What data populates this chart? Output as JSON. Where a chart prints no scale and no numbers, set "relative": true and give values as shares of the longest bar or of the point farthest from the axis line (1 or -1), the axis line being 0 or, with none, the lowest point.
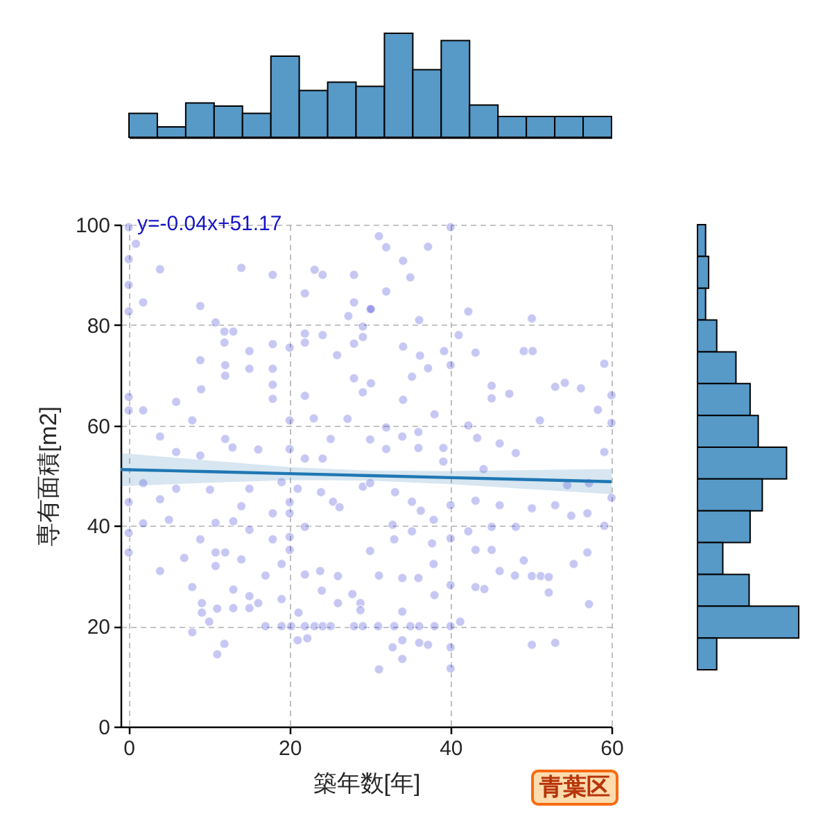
{
  "chart_data": [
    {
      "type": "bar",
      "relative": true,
      "color": "#5799c7",
      "categories": [
        null,
        null,
        null,
        null,
        null,
        null,
        null,
        null,
        null,
        null,
        null,
        null,
        null,
        null,
        null,
        null,
        null
      ],
      "values": [
        0.23,
        0.1,
        0.33,
        0.3,
        0.23,
        0.78,
        0.45,
        0.53,
        0.49,
        1,
        0.65,
        0.93,
        0.31,
        0.2,
        0.2,
        0.2,
        0.2
      ]
    },
    {
      "type": "scatter",
      "xlabel": "築年数[年]",
      "ylabel": "専有面積[m2]",
      "annotations": [
        "y=-0.04x+51.17",
        "青葉区"
      ],
      "xlim": [
        -1,
        60
      ],
      "xticks": [
        0,
        20,
        40,
        60
      ],
      "ylim": [
        0,
        100
      ],
      "yticks": [
        0,
        20,
        40,
        60,
        80,
        100
      ],
      "grid": true,
      "series": [
        {
          "color": "#0000cd",
          "marker": "circle",
          "x": [
            0,
            0.9,
            0,
            3.9,
            0,
            1.8,
            0,
            8.9,
            14,
            17.9,
            10.8,
            11.9,
            13,
            11.9,
            8.9,
            12,
            15,
            15,
            17.9,
            17.9,
            20,
            9,
            5.9,
            7.9,
            0,
            0,
            1.8,
            3.9,
            5.9,
            8.9,
            12,
            12.9,
            16.1,
            17.9,
            17.9,
            20,
            20,
            21.9,
            23.1,
            24.1,
            21.9,
            21.9,
            24.1,
            23,
            21.9,
            25.1,
            21.9,
            24.1,
            28,
            28,
            27.3,
            29.1,
            28,
            25.9,
            28,
            29.1,
            27.2,
            30,
            12,
            40,
            31.1,
            32,
            37.2,
            34.1,
            35,
            32,
            30.1,
            42.2,
            36.1,
            50.1,
            41,
            43.1,
            49.1,
            50.2,
            59.1,
            53,
            54.2,
            56.2,
            60,
            51.1,
            58.3,
            59.1,
            60,
            47.3,
            45.1,
            45.1,
            40,
            39.2,
            37.2,
            35.2,
            30.1,
            34.1,
            32,
            38,
            39.1,
            48.1,
            46.1,
            30,
            32,
            34,
            36,
            36,
            39.1,
            42.2,
            43.3,
            29.1,
            34.1,
            36.2,
            0,
            0,
            0,
            1.8,
            3.9,
            5,
            3.9,
            1.8,
            5.9,
            6.9,
            7.9,
            9.1,
            9.1,
            7.9,
            10,
            11,
            11.9,
            11,
            8.9,
            10.8,
            12,
            10.8,
            13,
            13,
            14,
            15,
            15,
            16.1,
            17,
            19,
            20.2,
            21.9,
            23.1,
            24.1,
            25.1,
            28,
            29.1,
            31,
            33,
            35,
            38,
            19,
            21.1,
            21,
            22.2,
            17,
            19,
            20,
            20,
            20,
            20,
            21,
            19,
            15,
            13,
            15,
            17.9,
            10.8,
            21.9,
            24,
            26,
            23.8,
            26,
            27.8,
            28.8,
            28.8,
            25.4,
            26.2,
            21.9,
            23.9,
            29.1,
            17.9,
            10.1,
            14,
            40,
            40,
            40,
            40,
            40,
            40,
            31.1,
            34,
            34,
            34,
            36.1,
            36.1,
            37.2,
            32.8,
            31.1,
            34,
            36,
            37.9,
            38,
            41.2,
            43.1,
            44.2,
            46.1,
            48,
            49.1,
            50.1,
            51.2,
            52.2,
            52.2,
            50.1,
            53,
            57.2,
            55.3,
            57,
            45.1,
            43.1,
            48.1,
            55,
            57,
            59.1,
            60,
            50.1,
            53,
            45.1,
            46.1,
            42.2,
            43.1,
            37.9,
            30,
            33.1,
            35.2,
            36.3,
            32.8,
            35.2,
            33,
            37.7,
            30,
            44.1,
            54.5,
            57.2
          ],
          "values": [
            99.5,
            96.2,
            93.1,
            91.1,
            88,
            84.5,
            82.7,
            83.8,
            91.4,
            90,
            80.5,
            78.7,
            78.7,
            76.5,
            73,
            72,
            74.8,
            71.3,
            76.2,
            71.3,
            75.5,
            67.2,
            64.7,
            61,
            65.7,
            63,
            63,
            57.8,
            54.7,
            54,
            57.3,
            55.6,
            55.2,
            65.3,
            68.1,
            61,
            55.3,
            86.3,
            91,
            90,
            78.3,
            76.5,
            78,
            61.4,
            65.9,
            57.3,
            53.4,
            53.4,
            90,
            84.5,
            81.8,
            79.7,
            76.3,
            74,
            69.4,
            66.6,
            61.3,
            83.1,
            69.9,
            99.5,
            97.7,
            95.5,
            95.6,
            92.8,
            89.5,
            86.7,
            83.2,
            82.7,
            81,
            81.3,
            78,
            74.5,
            74.8,
            74.8,
            72.3,
            67.7,
            68.5,
            67.4,
            66,
            61,
            63.1,
            54.7,
            60.5,
            66.3,
            67.9,
            65.4,
            72,
            74.8,
            71.4,
            69.7,
            68.4,
            65.1,
            59.6,
            62.2,
            55.5,
            54.5,
            56.4,
            57.2,
            55.3,
            57.8,
            58.7,
            55.5,
            52.8,
            60,
            57.5,
            77.6,
            75.7,
            73.9,
            44.7,
            38.6,
            34.7,
            40.5,
            45.3,
            41.2,
            31,
            48.5,
            47.4,
            33.6,
            27.8,
            24.6,
            22.7,
            18.8,
            20.9,
            23.5,
            16.5,
            14.4,
            37.3,
            34.7,
            34.7,
            32,
            27.3,
            23.6,
            33.3,
            26,
            23.6,
            24.6,
            20,
            20,
            20,
            20,
            20,
            20,
            20,
            20,
            20,
            20,
            20,
            20,
            20,
            25.4,
            22.7,
            17.2,
            17.6,
            30.1,
            32.4,
            44.7,
            42.5,
            37.8,
            35.2,
            47.4,
            48.7,
            47.4,
            40.9,
            39.2,
            37.3,
            40.6,
            30.3,
            27.1,
            24.6,
            31,
            30,
            26.4,
            24.6,
            23.2,
            44.8,
            43.7,
            39.8,
            46.7,
            47.8,
            42.5,
            47.2,
            43.9,
            44.1,
            37.5,
            28.2,
            20,
            15.8,
            11.6,
            11.4,
            13.5,
            22.9,
            17.2,
            20,
            16.7,
            16.3,
            15.8,
            30.1,
            29.6,
            29.6,
            32.4,
            26.2,
            20.9,
            27.8,
            27.4,
            31,
            30.1,
            33.1,
            30,
            30,
            29.8,
            26.7,
            16.3,
            16.7,
            24.4,
            32.4,
            34.7,
            35.2,
            35.2,
            39.8,
            42,
            42.5,
            40,
            45.6,
            43.5,
            44.1,
            39.8,
            44.1,
            38.9,
            45,
            41.2,
            48.5,
            46.7,
            44.8,
            43,
            40.2,
            38.9,
            37.3,
            36.5,
            35,
            51.3,
            48.1,
            48.5
          ]
        },
        {
          "type": "line",
          "color": "#1f77b4",
          "marker": "none",
          "x": [
            -1,
            10,
            20,
            30,
            40,
            50,
            60
          ],
          "values": [
            51.2,
            50.8,
            50.4,
            50,
            49.6,
            49.2,
            48.8
          ],
          "lower": [
            47.9,
            48.6,
            49.1,
            49,
            48.3,
            47.3,
            46.3
          ],
          "upper": [
            54.5,
            53,
            51.7,
            51,
            50.9,
            51.1,
            51.3
          ]
        }
      ]
    },
    {
      "type": "bar",
      "orientation": "horizontal",
      "relative": true,
      "color": "#5799c7",
      "categories": [
        null,
        null,
        null,
        null,
        null,
        null,
        null,
        null,
        null,
        null,
        null,
        null,
        null,
        null
      ],
      "values": [
        0.08,
        0.11,
        0.08,
        0.19,
        0.38,
        0.52,
        0.6,
        0.88,
        0.64,
        0.52,
        0.25,
        0.51,
        1,
        0.19
      ]
    }
  ]
}
